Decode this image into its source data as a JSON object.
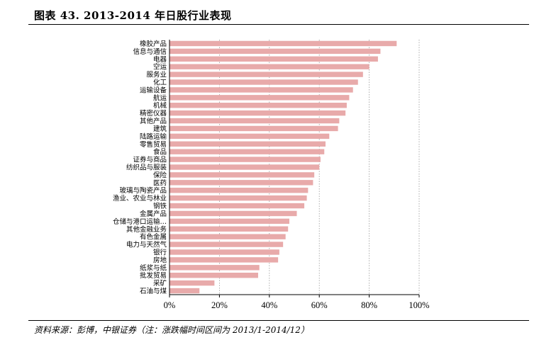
{
  "figure": {
    "title": "图表 43.  2013-2014 年日股行业表现",
    "source": "资料来源：彭博，中银证券（注：涨跌幅时间区间为 2013/1-2014/12）"
  },
  "colors": {
    "bar": "#e8aaaa",
    "grid": "#9a9a9a",
    "axis": "#000000"
  },
  "chart_data": {
    "type": "bar",
    "orientation": "horizontal",
    "categories": [
      "橡胶产品",
      "信息与通信",
      "电器",
      "空运",
      "服务业",
      "化工",
      "运输设备",
      "航运",
      "机械",
      "精密仪器",
      "其他产品",
      "建筑",
      "陆路运输",
      "零售贸易",
      "食品",
      "证券与商品",
      "纺织品与服装",
      "保险",
      "医药",
      "玻璃与陶瓷产品",
      "渔业、农业与林业",
      "钢铁",
      "金属产品",
      "仓储与港口运输…",
      "其他金融业务",
      "有色金属",
      "电力与天然气",
      "银行",
      "房地",
      "纸浆与纸",
      "批发贸易",
      "采矿",
      "石油与煤"
    ],
    "values": [
      0.91,
      0.845,
      0.835,
      0.8,
      0.775,
      0.755,
      0.735,
      0.72,
      0.71,
      0.705,
      0.68,
      0.675,
      0.64,
      0.625,
      0.62,
      0.605,
      0.6,
      0.58,
      0.575,
      0.555,
      0.55,
      0.54,
      0.51,
      0.48,
      0.475,
      0.465,
      0.455,
      0.44,
      0.435,
      0.36,
      0.355,
      0.18,
      0.12
    ],
    "xlim": [
      0,
      1.0
    ],
    "xticks": [
      0,
      0.2,
      0.4,
      0.6,
      0.8,
      1.0
    ],
    "xtick_labels": [
      "0%",
      "20%",
      "40%",
      "60%",
      "80%",
      "100%"
    ],
    "grid": "vertical-dotted",
    "legend": "none"
  }
}
